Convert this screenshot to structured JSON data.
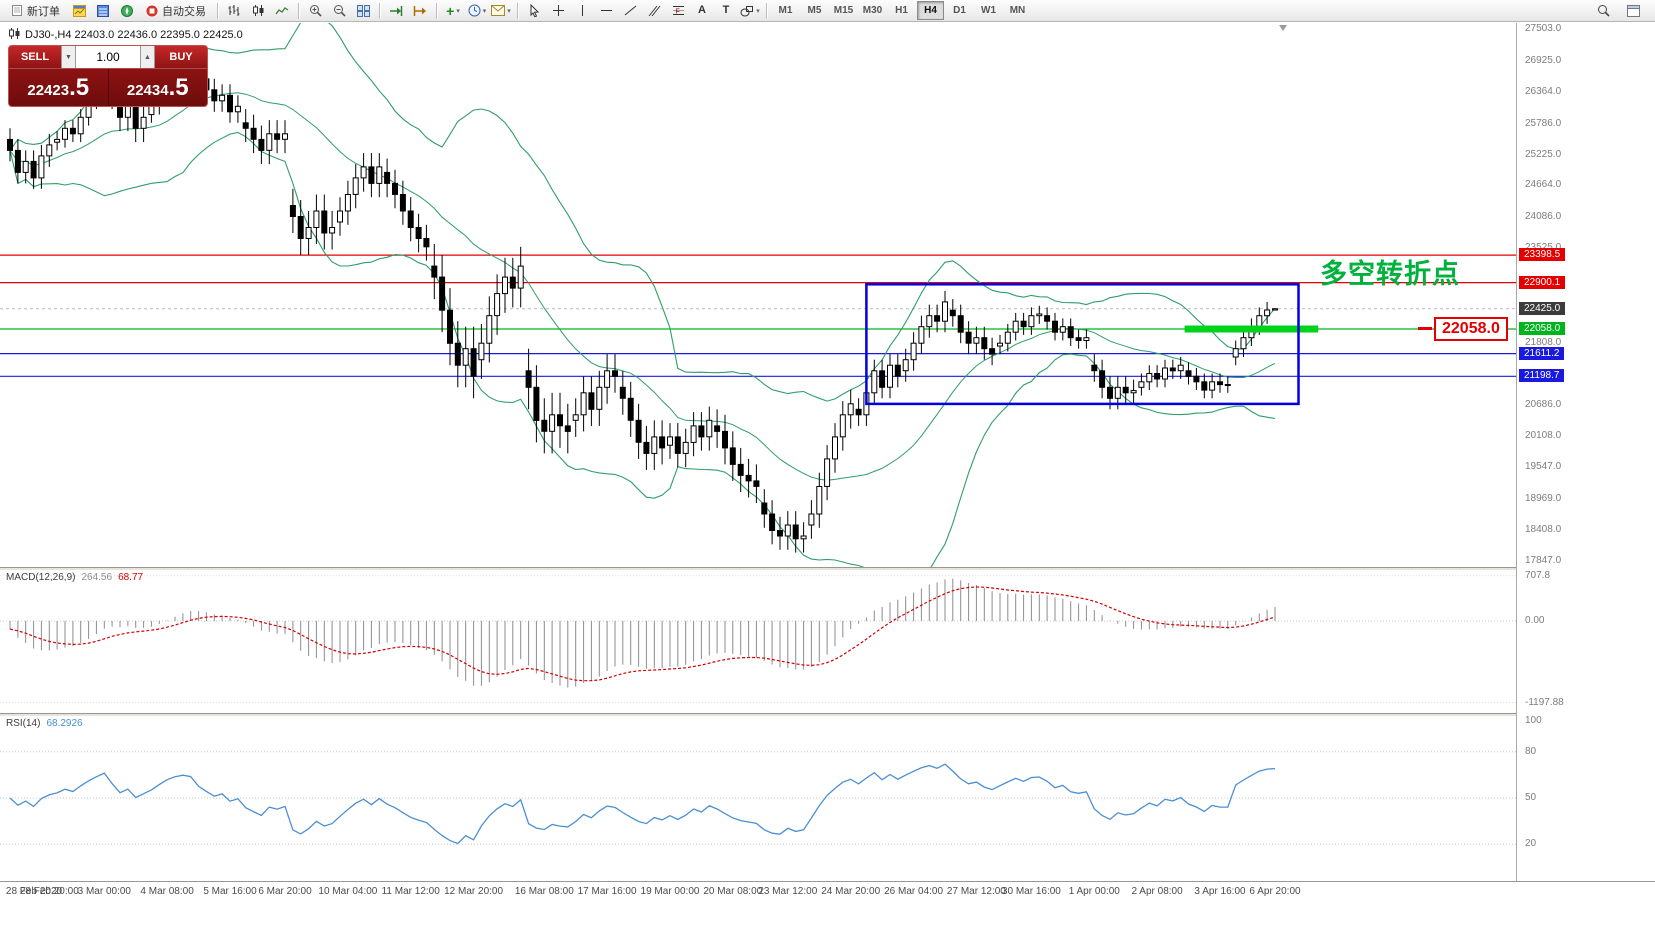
{
  "toolbar": {
    "groups": [
      {
        "items": [
          {
            "name": "new-order",
            "icon": "doc",
            "label": "新订单"
          },
          {
            "name": "charts",
            "icon": "chartwin"
          },
          {
            "name": "market-watch",
            "icon": "quotes"
          },
          {
            "name": "navigator",
            "icon": "navigator"
          },
          {
            "name": "autotrading",
            "icon": "stop",
            "label": "自动交易"
          }
        ]
      },
      {
        "items": [
          {
            "name": "bar-chart",
            "icon": "bars"
          },
          {
            "name": "candlestick-chart",
            "icon": "candles"
          },
          {
            "name": "line-chart",
            "icon": "linechart"
          }
        ]
      },
      {
        "items": [
          {
            "name": "zoom-in",
            "icon": "zoomin"
          },
          {
            "name": "zoom-out",
            "icon": "zoomout"
          },
          {
            "name": "tile-windows",
            "icon": "tile"
          }
        ]
      },
      {
        "items": [
          {
            "name": "auto-scroll",
            "icon": "autoscroll"
          },
          {
            "name": "chart-shift",
            "icon": "chartshift"
          }
        ]
      },
      {
        "items": [
          {
            "name": "indicators",
            "icon": "plus",
            "caret": true
          },
          {
            "name": "periods",
            "icon": "clock",
            "caret": true
          },
          {
            "name": "templates",
            "icon": "mail",
            "caret": true
          }
        ]
      },
      {
        "items": [
          {
            "name": "cursor",
            "icon": "cursor"
          },
          {
            "name": "crosshair",
            "icon": "crosshair"
          },
          {
            "name": "vertical-line",
            "icon": "vline"
          },
          {
            "name": "horizontal-line",
            "icon": "hline"
          },
          {
            "name": "trendline",
            "icon": "tline"
          },
          {
            "name": "equidistant-channel",
            "icon": "channel"
          },
          {
            "name": "fibonacci",
            "icon": "fibo"
          },
          {
            "name": "text",
            "icon": "textA"
          },
          {
            "name": "text-label",
            "icon": "labelT"
          },
          {
            "name": "shapes",
            "icon": "shapes",
            "caret": true
          }
        ]
      }
    ],
    "timeframes": [
      "M1",
      "M5",
      "M15",
      "M30",
      "H1",
      "H4",
      "D1",
      "W1",
      "MN"
    ],
    "active_timeframe": "H4",
    "right_items": [
      {
        "name": "chart-search",
        "icon": "search"
      },
      {
        "name": "window-menu",
        "icon": "windowicon"
      }
    ]
  },
  "chart": {
    "symbol_ohlc": "DJ30-,H4  22403.0 22436.0 22395.0 22425.0",
    "trade": {
      "sell_label": "SELL",
      "buy_label": "BUY",
      "volume": "1.00",
      "sell_price_int": "22423",
      "sell_price_frac": ".5",
      "buy_price_int": "22434",
      "buy_price_frac": ".5"
    },
    "annotation": {
      "text": "多空转折点",
      "color": "#00b23c"
    },
    "callout": {
      "text": "22058.0"
    },
    "price_axis": {
      "regular": [
        "27503.0",
        "26925.0",
        "26364.0",
        "25786.0",
        "25225.0",
        "24664.0",
        "24086.0",
        "23525.0",
        "21808.0",
        "20686.0",
        "20108.0",
        "19547.0",
        "18969.0",
        "18408.0",
        "17847.0"
      ],
      "tags": [
        {
          "text": "23398.5",
          "type": "red"
        },
        {
          "text": "22900.1",
          "type": "red"
        },
        {
          "text": "22425.0",
          "type": "current"
        },
        {
          "text": "22058.0",
          "type": "green"
        },
        {
          "text": "21611.2",
          "type": "blue"
        },
        {
          "text": "21198.7",
          "type": "blue"
        }
      ]
    },
    "time_axis": [
      {
        "i": 0,
        "t": "28 Feb 2020"
      },
      {
        "i": 5,
        "t": "28 Feb 20:00"
      },
      {
        "i": 12,
        "t": "3 Mar 00:00"
      },
      {
        "i": 20,
        "t": "4 Mar 08:00"
      },
      {
        "i": 28,
        "t": "5 Mar 16:00"
      },
      {
        "i": 35,
        "t": "6 Mar 20:00"
      },
      {
        "i": 43,
        "t": "10 Mar 04:00"
      },
      {
        "i": 51,
        "t": "11 Mar 12:00"
      },
      {
        "i": 59,
        "t": "12 Mar 20:00"
      },
      {
        "i": 68,
        "t": "16 Mar 08:00"
      },
      {
        "i": 76,
        "t": "17 Mar 16:00"
      },
      {
        "i": 84,
        "t": "19 Mar 00:00"
      },
      {
        "i": 92,
        "t": "20 Mar 08:00"
      },
      {
        "i": 99,
        "t": "23 Mar 12:00"
      },
      {
        "i": 107,
        "t": "24 Mar 20:00"
      },
      {
        "i": 115,
        "t": "26 Mar 04:00"
      },
      {
        "i": 123,
        "t": "27 Mar 12:00"
      },
      {
        "i": 130,
        "t": "30 Mar 16:00"
      },
      {
        "i": 138,
        "t": "1 Apr 00:00"
      },
      {
        "i": 146,
        "t": "2 Apr 08:00"
      },
      {
        "i": 154,
        "t": "3 Apr 16:00"
      },
      {
        "i": 161,
        "t": "6 Apr 20:00"
      }
    ]
  },
  "chart_data": {
    "type": "candlestick",
    "symbol": "DJ30-",
    "timeframe": "H4",
    "ohlc_display": {
      "open": "22403.0",
      "high": "22436.0",
      "low": "22395.0",
      "close": "22425.0"
    },
    "price_range": [
      17847,
      27503
    ],
    "candles": [
      [
        25500,
        25700,
        25100,
        25300
      ],
      [
        25300,
        25500,
        24700,
        24900
      ],
      [
        24900,
        25300,
        24700,
        25100
      ],
      [
        25100,
        25300,
        24600,
        24800
      ],
      [
        24800,
        25400,
        24600,
        25200
      ],
      [
        25200,
        25600,
        25000,
        25400
      ],
      [
        25450,
        25650,
        25300,
        25500
      ],
      [
        25500,
        25850,
        25350,
        25700
      ],
      [
        25700,
        25850,
        25450,
        25600
      ],
      [
        25600,
        26050,
        25450,
        25900
      ],
      [
        25900,
        26350,
        25750,
        26200
      ],
      [
        26200,
        26600,
        26050,
        26450
      ],
      [
        26450,
        26950,
        26300,
        26700
      ],
      [
        26700,
        26950,
        26050,
        26300
      ],
      [
        26300,
        26550,
        25650,
        25900
      ],
      [
        25900,
        26350,
        25650,
        26100
      ],
      [
        26100,
        26350,
        25450,
        25700
      ],
      [
        25700,
        26150,
        25450,
        25900
      ],
      [
        25950,
        26250,
        25800,
        26100
      ],
      [
        26100,
        26550,
        25950,
        26400
      ],
      [
        26400,
        26850,
        26250,
        26700
      ],
      [
        26700,
        27050,
        26550,
        26900
      ],
      [
        26900,
        27150,
        26750,
        27000
      ],
      [
        27000,
        27150,
        26800,
        26950
      ],
      [
        26700,
        26900,
        26400,
        26600
      ],
      [
        26600,
        26800,
        26200,
        26400
      ],
      [
        26400,
        26600,
        26000,
        26200
      ],
      [
        26200,
        26500,
        26000,
        26300
      ],
      [
        26300,
        26500,
        25800,
        26000
      ],
      [
        26000,
        26300,
        25800,
        26100
      ],
      [
        25800,
        26050,
        25450,
        25700
      ],
      [
        25700,
        25950,
        25250,
        25500
      ],
      [
        25500,
        25750,
        25050,
        25300
      ],
      [
        25300,
        25850,
        25050,
        25600
      ],
      [
        25600,
        25850,
        25250,
        25500
      ],
      [
        25500,
        25850,
        25250,
        25600
      ],
      [
        24300,
        24600,
        23800,
        24100
      ],
      [
        24100,
        24400,
        23400,
        23700
      ],
      [
        23700,
        24200,
        23400,
        23900
      ],
      [
        23900,
        24500,
        23600,
        24200
      ],
      [
        24200,
        24500,
        23500,
        23800
      ],
      [
        23800,
        24200,
        23500,
        23900
      ],
      [
        24000,
        24450,
        23750,
        24200
      ],
      [
        24200,
        24750,
        23950,
        24500
      ],
      [
        24500,
        25050,
        24250,
        24800
      ],
      [
        24800,
        25250,
        24550,
        25000
      ],
      [
        25000,
        25250,
        24450,
        24700
      ],
      [
        24700,
        25250,
        24450,
        25000
      ],
      [
        24900,
        25150,
        24450,
        24700
      ],
      [
        24700,
        24950,
        24250,
        24500
      ],
      [
        24500,
        24750,
        23950,
        24200
      ],
      [
        24200,
        24450,
        23650,
        23900
      ],
      [
        23900,
        24150,
        23450,
        23700
      ],
      [
        23700,
        23950,
        23300,
        23550
      ],
      [
        23200,
        23600,
        22600,
        23000
      ],
      [
        23000,
        23400,
        22000,
        22400
      ],
      [
        22400,
        22800,
        21400,
        21800
      ],
      [
        21800,
        22200,
        21000,
        21400
      ],
      [
        21400,
        22100,
        21000,
        21700
      ],
      [
        21700,
        22100,
        20800,
        21200
      ],
      [
        21500,
        22150,
        21150,
        21800
      ],
      [
        21800,
        22650,
        21450,
        22300
      ],
      [
        22300,
        23050,
        21950,
        22700
      ],
      [
        22700,
        23350,
        22350,
        23000
      ],
      [
        23000,
        23350,
        22450,
        22800
      ],
      [
        22800,
        23550,
        22450,
        23200
      ],
      [
        21300,
        21700,
        20600,
        21000
      ],
      [
        21000,
        21400,
        20000,
        20400
      ],
      [
        20400,
        20800,
        19800,
        20200
      ],
      [
        20200,
        20900,
        19800,
        20500
      ],
      [
        20500,
        20900,
        19900,
        20300
      ],
      [
        20300,
        20700,
        19800,
        20200
      ],
      [
        20400,
        20800,
        20100,
        20500
      ],
      [
        20500,
        21200,
        20200,
        20900
      ],
      [
        20900,
        21200,
        20300,
        20600
      ],
      [
        20600,
        21300,
        20300,
        21000
      ],
      [
        21000,
        21600,
        20700,
        21300
      ],
      [
        21300,
        21600,
        20900,
        21200
      ],
      [
        21000,
        21300,
        20500,
        20800
      ],
      [
        20800,
        21100,
        20100,
        20400
      ],
      [
        20400,
        20700,
        19700,
        20000
      ],
      [
        20000,
        20300,
        19500,
        19800
      ],
      [
        19800,
        20400,
        19500,
        20100
      ],
      [
        20100,
        20400,
        19600,
        19900
      ],
      [
        19950,
        20350,
        19700,
        20100
      ],
      [
        20100,
        20350,
        19550,
        19800
      ],
      [
        19800,
        20250,
        19550,
        20000
      ],
      [
        20000,
        20550,
        19750,
        20300
      ],
      [
        20300,
        20550,
        19850,
        20100
      ],
      [
        20100,
        20650,
        19850,
        20400
      ],
      [
        20300,
        20600,
        19900,
        20200
      ],
      [
        20200,
        20500,
        19600,
        19900
      ],
      [
        19900,
        20200,
        19300,
        19600
      ],
      [
        19600,
        19900,
        19100,
        19400
      ],
      [
        19400,
        19700,
        19000,
        19300
      ],
      [
        19300,
        19600,
        18900,
        19200
      ],
      [
        18900,
        19150,
        18450,
        18700
      ],
      [
        18700,
        18950,
        18150,
        18400
      ],
      [
        18400,
        18650,
        18050,
        18300
      ],
      [
        18300,
        18750,
        18050,
        18500
      ],
      [
        18500,
        18750,
        18000,
        18250
      ],
      [
        18250,
        18550,
        18000,
        18300
      ],
      [
        18500,
        18950,
        18250,
        18700
      ],
      [
        18700,
        19450,
        18450,
        19200
      ],
      [
        19200,
        19950,
        18950,
        19700
      ],
      [
        19700,
        20350,
        19450,
        20100
      ],
      [
        20100,
        20750,
        19850,
        20500
      ],
      [
        20500,
        20950,
        20250,
        20700
      ],
      [
        20600,
        20800,
        20300,
        20500
      ],
      [
        20500,
        21100,
        20300,
        20900
      ],
      [
        20900,
        21500,
        20700,
        21300
      ],
      [
        21300,
        21500,
        20800,
        21000
      ],
      [
        21000,
        21600,
        20800,
        21400
      ],
      [
        21400,
        21600,
        21000,
        21200
      ],
      [
        21300,
        21700,
        21100,
        21500
      ],
      [
        21500,
        22000,
        21300,
        21800
      ],
      [
        21800,
        22300,
        21600,
        22100
      ],
      [
        22100,
        22500,
        21900,
        22300
      ],
      [
        22300,
        22500,
        22000,
        22200
      ],
      [
        22200,
        22750,
        22000,
        22550
      ],
      [
        22400,
        22600,
        22100,
        22300
      ],
      [
        22300,
        22500,
        21800,
        22000
      ],
      [
        22000,
        22200,
        21600,
        21800
      ],
      [
        21800,
        22100,
        21600,
        21900
      ],
      [
        21900,
        22100,
        21500,
        21700
      ],
      [
        21700,
        21900,
        21400,
        21600
      ],
      [
        21750,
        21950,
        21600,
        21800
      ],
      [
        21800,
        22150,
        21650,
        22000
      ],
      [
        22000,
        22350,
        21850,
        22200
      ],
      [
        22200,
        22350,
        21950,
        22100
      ],
      [
        22100,
        22450,
        21950,
        22300
      ],
      [
        22300,
        22480,
        22150,
        22330
      ],
      [
        22300,
        22450,
        22050,
        22200
      ],
      [
        22200,
        22350,
        21850,
        22000
      ],
      [
        22000,
        22250,
        21850,
        22100
      ],
      [
        22100,
        22250,
        21750,
        21900
      ],
      [
        21900,
        22050,
        21700,
        21850
      ],
      [
        21850,
        22050,
        21700,
        21900
      ],
      [
        21400,
        21600,
        21100,
        21300
      ],
      [
        21300,
        21500,
        20800,
        21000
      ],
      [
        21000,
        21200,
        20600,
        20800
      ],
      [
        20800,
        21200,
        20600,
        21000
      ],
      [
        21000,
        21200,
        20700,
        20900
      ],
      [
        20900,
        21140,
        20700,
        20940
      ],
      [
        21000,
        21250,
        20850,
        21100
      ],
      [
        21100,
        21400,
        20950,
        21250
      ],
      [
        21250,
        21400,
        21000,
        21150
      ],
      [
        21150,
        21500,
        21000,
        21350
      ],
      [
        21350,
        21500,
        21150,
        21300
      ],
      [
        21300,
        21550,
        21150,
        21400
      ],
      [
        21300,
        21450,
        21050,
        21200
      ],
      [
        21200,
        21350,
        20950,
        21100
      ],
      [
        21100,
        21250,
        20800,
        20950
      ],
      [
        20950,
        21250,
        20800,
        21100
      ],
      [
        21100,
        21250,
        20900,
        21050
      ],
      [
        21050,
        21200,
        20900,
        21050
      ],
      [
        21550,
        21850,
        21400,
        21700
      ],
      [
        21700,
        22050,
        21550,
        21900
      ],
      [
        21900,
        22250,
        21750,
        22100
      ],
      [
        22100,
        22450,
        21950,
        22300
      ],
      [
        22300,
        22550,
        22150,
        22403
      ],
      [
        22403,
        22436,
        22395,
        22425
      ]
    ],
    "overlays": {
      "bollinger": {
        "period": 20,
        "deviation": 2,
        "color": "#2f9e68"
      },
      "hlines": [
        {
          "price": 23398.5,
          "color": "#e40000"
        },
        {
          "price": 22900.1,
          "color": "#e40000"
        },
        {
          "price": 22058.0,
          "color": "#00b41e"
        },
        {
          "price": 21611.2,
          "color": "#1a1adf"
        },
        {
          "price": 21198.7,
          "color": "#1a1adf"
        }
      ],
      "current_price": 22425.0,
      "box": {
        "i1": 109,
        "i2": 164,
        "price_top": 22870,
        "price_bottom": 20700,
        "color": "#0000e0"
      },
      "segment": {
        "i1": 149.5,
        "i2": 166.5,
        "price": 22058,
        "color": "#00d31c",
        "thickness": 7
      }
    }
  },
  "macd": {
    "label": "MACD(12,26,9)",
    "value_main": "264.56",
    "value_signal": "68.77",
    "axis": [
      "707.8",
      "0.00",
      "-1197.88"
    ]
  },
  "rsi": {
    "label": "RSI(14)",
    "value": "68.2926",
    "axis": [
      "100",
      "80",
      "50",
      "20"
    ]
  }
}
